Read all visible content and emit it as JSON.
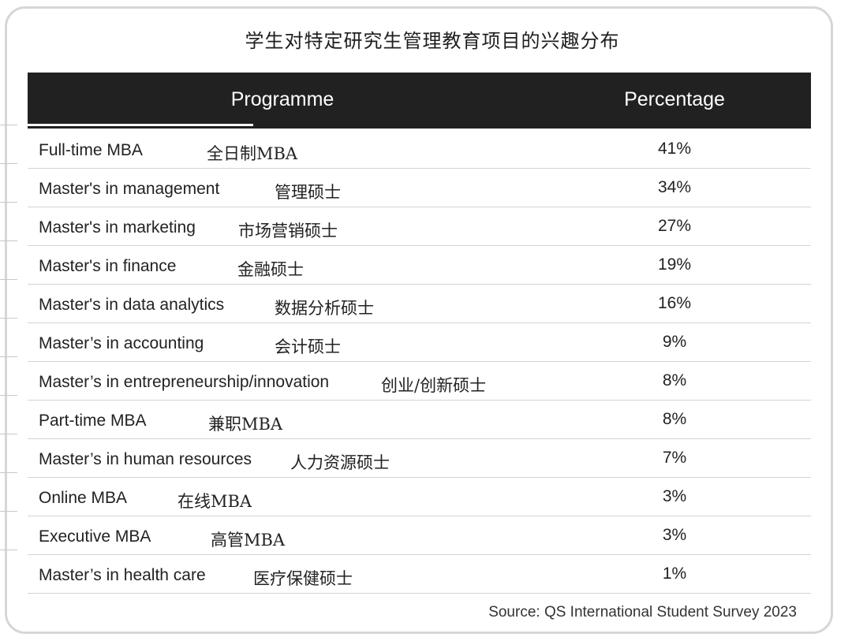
{
  "chart_data": {
    "type": "table",
    "title": "学生对特定研究生管理教育项目的兴趣分布",
    "columns": [
      "Programme",
      "Percentage"
    ],
    "rows": [
      {
        "programme": "Full-time MBA",
        "programme_zh": "全日制MBA",
        "percentage": "41%",
        "value": 41
      },
      {
        "programme": "Master's in management",
        "programme_zh": "管理硕士",
        "percentage": "34%",
        "value": 34
      },
      {
        "programme": "Master's in marketing",
        "programme_zh": "市场营销硕士",
        "percentage": "27%",
        "value": 27
      },
      {
        "programme": "Master's in finance",
        "programme_zh": "金融硕士",
        "percentage": "19%",
        "value": 19
      },
      {
        "programme": "Master's in data analytics",
        "programme_zh": "数据分析硕士",
        "percentage": "16%",
        "value": 16
      },
      {
        "programme": "Master’s in accounting",
        "programme_zh": "会计硕士",
        "percentage": "9%",
        "value": 9
      },
      {
        "programme": "Master’s in entrepreneurship/innovation",
        "programme_zh": "创业/创新硕士",
        "percentage": "8%",
        "value": 8
      },
      {
        "programme": "Part-time MBA",
        "programme_zh": "兼职MBA",
        "percentage": "8%",
        "value": 8
      },
      {
        "programme": "Master’s in human resources",
        "programme_zh": "人力资源硕士",
        "percentage": "7%",
        "value": 7
      },
      {
        "programme": "Online MBA",
        "programme_zh": "在线MBA",
        "percentage": "3%",
        "value": 3
      },
      {
        "programme": "Executive MBA",
        "programme_zh": "高管MBA",
        "percentage": "3%",
        "value": 3
      },
      {
        "programme": "Master’s in health care",
        "programme_zh": "医疗保健硕士",
        "percentage": "1%",
        "value": 1
      }
    ],
    "source": "Source: QS International Student Survey 2023"
  },
  "colors": {
    "header_background": "#212121",
    "header_text": "#ffffff",
    "text": "#222222",
    "divider": "#d4d4d4",
    "frame_border": "#d6d6d6"
  }
}
